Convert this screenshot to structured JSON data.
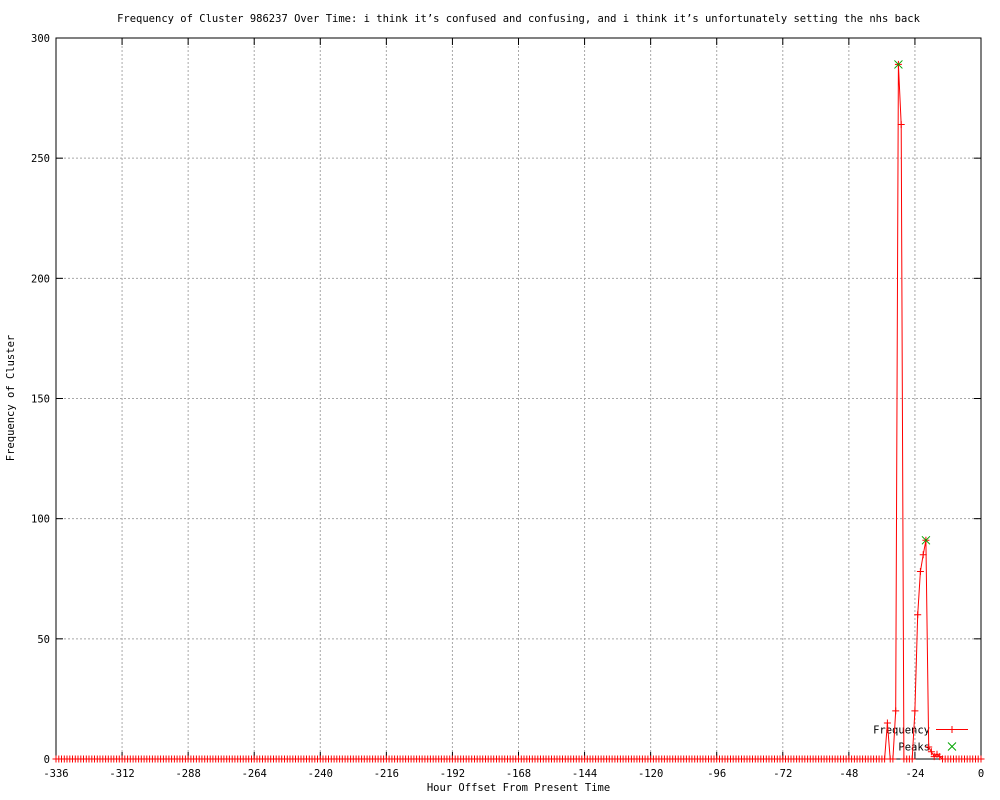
{
  "chart_data": {
    "type": "line",
    "title": "Frequency of Cluster 986237 Over Time: i think it’s confused and confusing, and i think it’s unfortunately setting the nhs back",
    "xlabel": "Hour Offset From Present Time",
    "ylabel": "Frequency of Cluster",
    "xlim": [
      -336,
      0
    ],
    "ylim": [
      0,
      300
    ],
    "x_ticks": [
      -336,
      -312,
      -288,
      -264,
      -240,
      -216,
      -192,
      -168,
      -144,
      -120,
      -96,
      -72,
      -48,
      -24,
      0
    ],
    "y_ticks": [
      0,
      50,
      100,
      150,
      200,
      250,
      300
    ],
    "grid": true,
    "legend_position": "inside-bottom-right",
    "colors": {
      "frequency_line": "#ff0000",
      "peaks_marker": "#00a400",
      "grid": "#a8a8a8",
      "axis": "#000000",
      "background": "#ffffff"
    },
    "series": [
      {
        "name": "Frequency",
        "color": "#ff0000",
        "marker": "plus",
        "x_start": -336,
        "x_end": 0,
        "x_step": 1,
        "baseline_value": 0,
        "nonzero_values": {
          "-34": 15,
          "-31": 20,
          "-30": 289,
          "-29": 264,
          "-24": 20,
          "-23": 60,
          "-22": 78,
          "-21": 85,
          "-20": 91,
          "-19": 5,
          "-18": 3,
          "-17": 1,
          "-16": 2,
          "-15": 1
        }
      },
      {
        "name": "Peaks",
        "color": "#00a400",
        "marker": "cross",
        "points": [
          [
            -30,
            289
          ],
          [
            -20,
            91
          ]
        ]
      }
    ]
  }
}
